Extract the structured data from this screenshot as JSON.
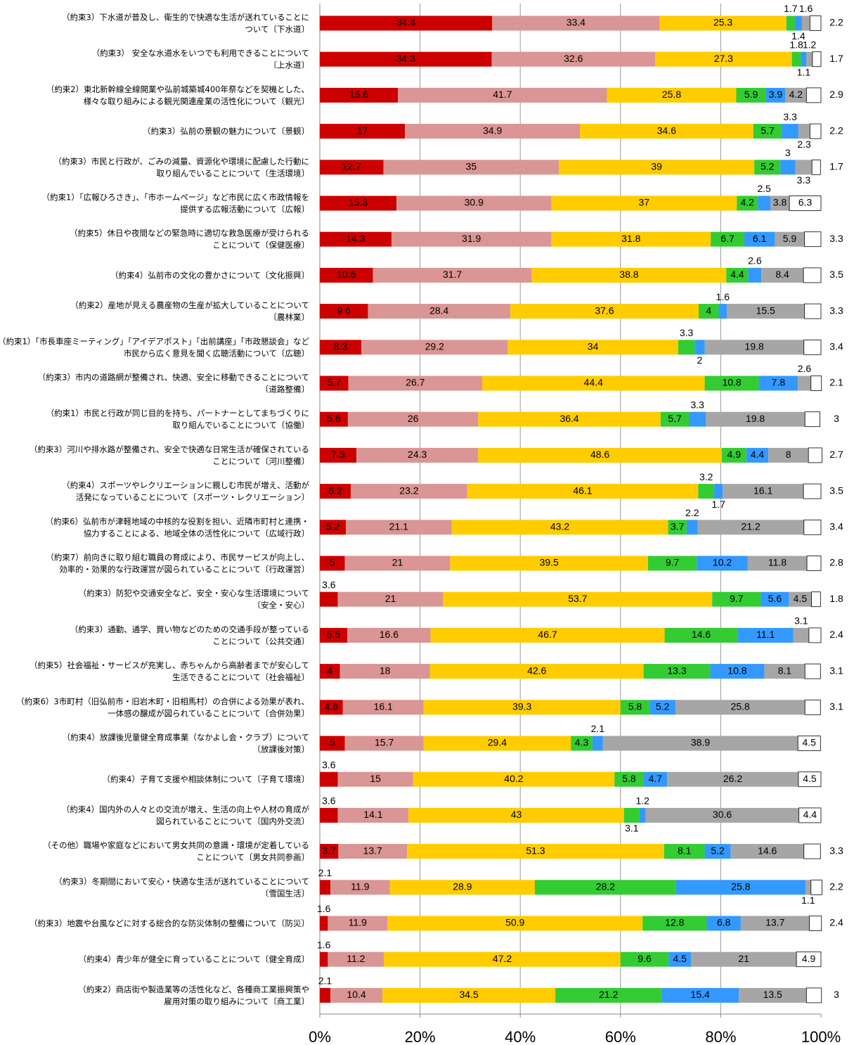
{
  "chart_data": {
    "type": "stacked-bar-horizontal",
    "categories": [
      "（約束3）下水道が普及し、衛生的で快適な生活が送れていることに\nついて〔下水道〕",
      "（約束3） 安全な水道水をいつでも利用できることについて\n〔上水道〕",
      "（約束2）東北新幹線全線開業や弘前城築城400年祭などを契機とした、\n様々な取り組みによる観光関連産業の活性化について〔観光〕",
      "（約束3）弘前の景観の魅力について〔景観〕",
      "（約束3）市民と行政が、ごみの減量、資源化や環境に配慮した行動に\n取り組んでいることについて〔生活環境〕",
      "（約束1）「広報ひろさき」、「市ホームページ」など市民に広く市政情報を\n提供する広報活動について〔広報〕",
      "（約束5）休日や夜間などの緊急時に適切な救急医療が受けられる\nことについて〔保健医療〕",
      "（約束4）弘前市の文化の豊かさについて〔文化振興〕",
      "（約束2）産地が見える農産物の生産が拡大していることについて\n〔農林業〕",
      "（約束1）「市長車座ミーティング」「アイデアポスト」「出前講座」「市政懇談会」など\n市民から広く意見を聞く広聴活動について〔広聴〕",
      "（約束3）市内の道路網が整備され、快適、安全に移動できることについて\n〔道路整備〕",
      "（約束1）市民と行政が同じ目的を持ち、パートナーとしてまちづくりに\n取り組んでいることについて〔協働〕",
      "（約束3）河川や排水路が整備され、安全で快適な日常生活が確保されている\nことについて〔河川整備〕",
      "（約束4）スポーツやレクリエーションに親しむ市民が増え、活動が\n活発になっていることについて〔スポーツ・レクリエーション〕",
      "（約束6）弘前市が津軽地域の中核的な役割を担い、近隣市町村と連携・\n協力することによる、地域全体の活性化について〔広域行政〕",
      "（約束7）前向きに取り組む職員の育成により、市民サービスが向上し、\n効率的・効果的な行政運営が図られていることについて〔行政運営〕",
      "（約束3）防犯や交通安全など、安全・安心な生活環境について\n〔安全・安心〕",
      "（約束3）通勤、通学、買い物などのための交通手段が整っている\nことについて〔公共交通〕",
      "（約束5）社会福祉・サービスが充実し、赤ちゃんから高齢者までが安心して\n生活できることについて〔社会福祉〕",
      "（約束6）3市町村（旧弘前市・旧岩木町・旧相馬村）の合併による効果が表れ、\n一体感の醸成が図られていることについて〔合併効果〕",
      "（約束4）放課後児童健全育成事業（なかよし会・クラブ）について\n〔放課後対策〕",
      "（約束4）子育て支援や相談体制について〔子育て環境〕",
      "（約束4）国内外の人々との交流が増え、生活の向上や人材の育成が\n図られていることについて〔国内外交流〕",
      "（その他）職場や家庭などにおいて男女共同の意識・環境が定着している\nことについて〔男女共同参画〕",
      "（約束3）冬期間において安心・快適な生活が送れていることについて\n〔雪国生活〕",
      "（約束3）地震や台風などに対する総合的な防災体制の整備について〔防災〕",
      "（約束4）青少年が健全に育っていることについて〔健全育成〕",
      "（約束2）商店街や製造業等の活性化など、各種商工業振興策や\n雇用対策の取り組みについて〔商工業〕"
    ],
    "series": [
      {
        "color": "#cc0000",
        "values": [
          34.4,
          34.3,
          15.6,
          17.0,
          12.7,
          15.3,
          14.3,
          10.6,
          9.6,
          8.3,
          5.7,
          5.6,
          7.3,
          6.2,
          5.2,
          5.0,
          3.6,
          5.5,
          4.0,
          4.6,
          5.0,
          3.6,
          3.6,
          3.7,
          2.1,
          1.6,
          1.6,
          2.1
        ]
      },
      {
        "color": "#d99694",
        "values": [
          33.4,
          32.6,
          41.7,
          34.9,
          35.0,
          30.9,
          31.9,
          31.7,
          28.4,
          29.2,
          26.7,
          26.0,
          24.3,
          23.2,
          21.1,
          21.0,
          21.0,
          16.6,
          18.0,
          16.1,
          15.7,
          15.0,
          14.1,
          13.7,
          11.9,
          11.9,
          11.2,
          10.4
        ]
      },
      {
        "color": "#ffcc00",
        "values": [
          25.3,
          27.3,
          25.8,
          34.6,
          39.0,
          37.0,
          31.8,
          38.8,
          37.6,
          34.0,
          44.4,
          36.4,
          48.6,
          46.1,
          43.2,
          39.5,
          53.7,
          46.7,
          42.6,
          39.3,
          29.4,
          40.2,
          43.0,
          51.3,
          28.9,
          50.9,
          47.2,
          34.5
        ]
      },
      {
        "color": "#33cc33",
        "values": [
          1.7,
          1.8,
          5.9,
          5.7,
          5.2,
          4.2,
          6.7,
          4.4,
          4.0,
          3.3,
          10.8,
          5.7,
          4.9,
          3.2,
          3.7,
          9.7,
          9.7,
          14.6,
          13.3,
          5.8,
          4.3,
          5.8,
          3.1,
          8.1,
          28.2,
          12.8,
          9.6,
          21.2
        ]
      },
      {
        "color": "#3399ff",
        "values": [
          1.4,
          1.1,
          3.9,
          3.3,
          3.0,
          2.5,
          6.1,
          2.6,
          1.6,
          2.0,
          7.8,
          3.3,
          4.4,
          1.7,
          2.2,
          10.2,
          5.6,
          11.1,
          10.8,
          5.2,
          2.1,
          4.7,
          1.2,
          5.2,
          25.8,
          6.8,
          4.5,
          15.4
        ]
      },
      {
        "color": "#a6a6a6",
        "values": [
          1.6,
          1.2,
          4.2,
          2.3,
          3.3,
          3.8,
          5.9,
          8.4,
          15.5,
          19.8,
          2.6,
          19.8,
          8.0,
          16.1,
          21.2,
          11.8,
          4.5,
          3.1,
          8.1,
          25.8,
          38.9,
          26.2,
          30.6,
          14.6,
          1.1,
          13.7,
          21.0,
          13.5
        ]
      },
      {
        "color": "#ffffff",
        "values": [
          2.2,
          1.7,
          2.9,
          2.2,
          1.7,
          6.3,
          3.3,
          3.5,
          3.3,
          3.4,
          2.1,
          3.0,
          2.7,
          3.5,
          3.4,
          2.8,
          1.8,
          2.4,
          3.1,
          3.1,
          4.5,
          4.5,
          4.4,
          3.3,
          2.2,
          2.4,
          4.9,
          3.0
        ]
      }
    ],
    "xlim": [
      0,
      100
    ],
    "xticks": [
      {
        "value": 0,
        "label": "0%"
      },
      {
        "value": 20,
        "label": "20%"
      },
      {
        "value": 40,
        "label": "40%"
      },
      {
        "value": 60,
        "label": "60%"
      },
      {
        "value": 80,
        "label": "80%"
      },
      {
        "value": 100,
        "label": "100%"
      }
    ],
    "grid": true
  }
}
